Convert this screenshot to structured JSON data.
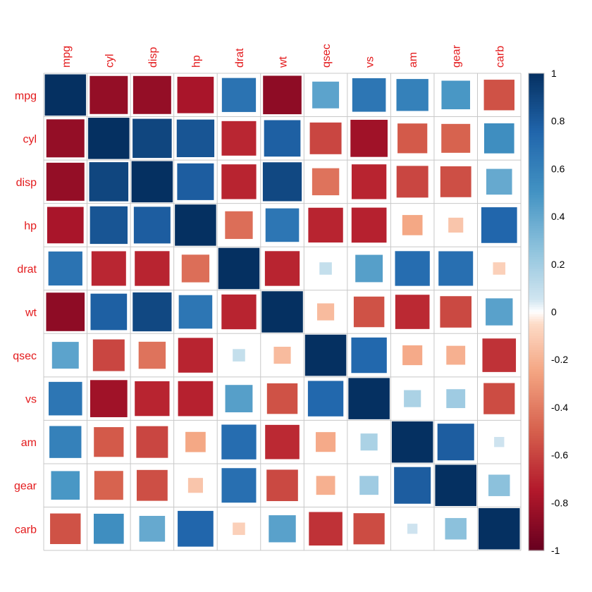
{
  "chart_data": {
    "type": "heatmap",
    "subtype": "correlation-matrix-square-glyphs",
    "variables": [
      "mpg",
      "cyl",
      "disp",
      "hp",
      "drat",
      "wt",
      "qsec",
      "vs",
      "am",
      "gear",
      "carb"
    ],
    "matrix": [
      [
        1.0,
        -0.85,
        -0.85,
        -0.78,
        0.68,
        -0.87,
        0.42,
        0.66,
        0.6,
        0.48,
        -0.55
      ],
      [
        -0.85,
        1.0,
        0.9,
        0.83,
        -0.7,
        0.78,
        -0.59,
        -0.81,
        -0.52,
        -0.49,
        0.53
      ],
      [
        -0.85,
        0.9,
        1.0,
        0.79,
        -0.71,
        0.89,
        -0.43,
        -0.71,
        -0.59,
        -0.56,
        0.39
      ],
      [
        -0.78,
        0.83,
        0.79,
        1.0,
        -0.45,
        0.66,
        -0.71,
        -0.72,
        -0.24,
        -0.13,
        0.75
      ],
      [
        0.68,
        -0.7,
        -0.71,
        -0.45,
        1.0,
        -0.71,
        0.09,
        0.44,
        0.71,
        0.7,
        -0.09
      ],
      [
        -0.87,
        0.78,
        0.89,
        0.66,
        -0.71,
        1.0,
        -0.17,
        -0.55,
        -0.69,
        -0.58,
        0.43
      ],
      [
        0.42,
        -0.59,
        -0.43,
        -0.71,
        0.09,
        -0.17,
        1.0,
        0.74,
        -0.23,
        -0.21,
        -0.66
      ],
      [
        0.66,
        -0.81,
        -0.71,
        -0.72,
        0.44,
        -0.55,
        0.74,
        1.0,
        0.17,
        0.21,
        -0.57
      ],
      [
        0.6,
        -0.52,
        -0.59,
        -0.24,
        0.71,
        -0.69,
        -0.23,
        0.17,
        1.0,
        0.79,
        0.06
      ],
      [
        0.48,
        -0.49,
        -0.56,
        -0.13,
        0.7,
        -0.58,
        -0.21,
        0.21,
        0.79,
        1.0,
        0.27
      ],
      [
        -0.55,
        0.53,
        0.39,
        0.75,
        -0.09,
        0.43,
        -0.66,
        -0.57,
        0.06,
        0.27,
        1.0
      ]
    ],
    "color_scale": {
      "range": [
        -1,
        1
      ],
      "ticks": [
        "1",
        "0.8",
        "0.6",
        "0.4",
        "0.2",
        "0",
        "-0.2",
        "-0.4",
        "-0.6",
        "-0.8",
        "-1"
      ],
      "stops": [
        {
          "value": -1.0,
          "color": "#67001f"
        },
        {
          "value": -0.75,
          "color": "#b2182b"
        },
        {
          "value": -0.5,
          "color": "#d6604d"
        },
        {
          "value": -0.25,
          "color": "#f4a582"
        },
        {
          "value": -0.05,
          "color": "#fddbc7"
        },
        {
          "value": 0.0,
          "color": "#ffffff"
        },
        {
          "value": 0.05,
          "color": "#d1e5f0"
        },
        {
          "value": 0.25,
          "color": "#92c5de"
        },
        {
          "value": 0.5,
          "color": "#4393c3"
        },
        {
          "value": 0.75,
          "color": "#2166ac"
        },
        {
          "value": 1.0,
          "color": "#053061"
        }
      ]
    },
    "label_color": "#e31a1c",
    "grid_color": "#c8c8c8",
    "title": "",
    "legend_position": "right"
  }
}
